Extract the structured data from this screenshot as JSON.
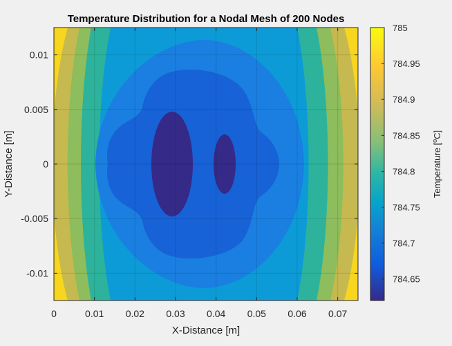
{
  "chart_data": {
    "type": "heatmap",
    "subtype": "filled-contour",
    "title": "Temperature Distribution for a Nodal Mesh of 200 Nodes",
    "xlabel": "X-Distance [m]",
    "ylabel": "Y-Distance [m]",
    "xlim": [
      0,
      0.075
    ],
    "ylim": [
      -0.0125,
      0.0125
    ],
    "x_ticks": [
      "0",
      "0.01",
      "0.02",
      "0.03",
      "0.04",
      "0.05",
      "0.06",
      "0.07"
    ],
    "x_tick_values": [
      0,
      0.01,
      0.02,
      0.03,
      0.04,
      0.05,
      0.06,
      0.07
    ],
    "y_ticks": [
      "0.01",
      "0.005",
      "0",
      "-0.005",
      "-0.01"
    ],
    "y_tick_values": [
      0.01,
      0.005,
      0,
      -0.005,
      -0.01
    ],
    "colorbar": {
      "label": "Temperature [°C]",
      "label_main": "Temperature [",
      "label_sup": "o",
      "label_end": "C]",
      "range": [
        784.62,
        785.0
      ],
      "ticks": [
        "785",
        "784.95",
        "784.9",
        "784.85",
        "784.8",
        "784.75",
        "784.7",
        "784.65"
      ],
      "tick_values": [
        785.0,
        784.95,
        784.9,
        784.85,
        784.8,
        784.75,
        784.7,
        784.65
      ],
      "colormap": "parula"
    },
    "contour_levels": [
      784.65,
      784.7,
      784.75,
      784.8,
      784.85,
      784.9,
      784.95
    ],
    "level_colors": [
      "#352a87",
      "#1665d2",
      "#0d9cd6",
      "#2ab19d",
      "#8dbd5c",
      "#e8b932",
      "#f9e226",
      "#f8fa0d"
    ],
    "minima": [
      {
        "x": 0.029,
        "y": 0.0,
        "value": 784.62
      },
      {
        "x": 0.0425,
        "y": 0.0,
        "value": 784.64
      }
    ],
    "edge_value_max": 784.96,
    "grid": true,
    "legend": "colorbar-right"
  }
}
